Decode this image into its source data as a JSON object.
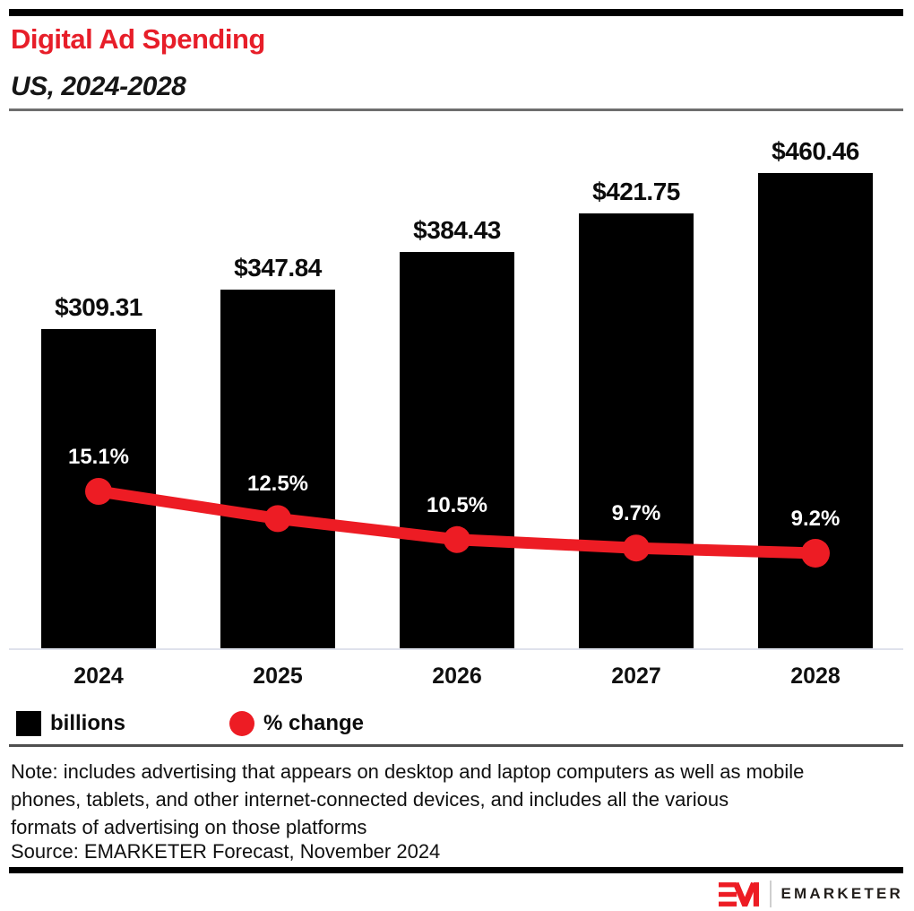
{
  "header": {
    "title": "Digital Ad Spending",
    "subtitle": "US, 2024-2028"
  },
  "chart_data": {
    "type": "bar",
    "combo": "bar+line",
    "title": "Digital Ad Spending",
    "subtitle": "US, 2024-2028",
    "categories": [
      "2024",
      "2025",
      "2026",
      "2027",
      "2028"
    ],
    "series": [
      {
        "name": "billions",
        "type": "bar",
        "values": [
          309.31,
          347.84,
          384.43,
          421.75,
          460.46
        ],
        "labels": [
          "$309.31",
          "$347.84",
          "$384.43",
          "$421.75",
          "$460.46"
        ],
        "color": "#000000"
      },
      {
        "name": "% change",
        "type": "line",
        "values": [
          15.1,
          12.5,
          10.5,
          9.7,
          9.2
        ],
        "labels": [
          "15.1%",
          "12.5%",
          "10.5%",
          "9.7%",
          "9.2%"
        ],
        "color": "#ed1c24"
      }
    ],
    "xlabel": "",
    "ylabel": "",
    "value_axis_visible": false,
    "grid": false,
    "legend_position": "bottom-left"
  },
  "legend": {
    "bar_label": "billions",
    "line_label": "% change"
  },
  "footer": {
    "note_lines": [
      "Note: includes advertising that appears on desktop and laptop computers as well as mobile",
      "phones, tablets, and other internet-connected devices, and includes all the various",
      "formats of advertising on those platforms"
    ],
    "source": "Source: EMARKETER Forecast, November 2024"
  },
  "branding": {
    "wordmark": "EMARKETER"
  },
  "colors": {
    "accent_red": "#ed1c24",
    "title_red": "#e71e29",
    "bar_black": "#000000",
    "percent_label_white": "#ffffff",
    "axis_line": "#dfe2ec"
  }
}
